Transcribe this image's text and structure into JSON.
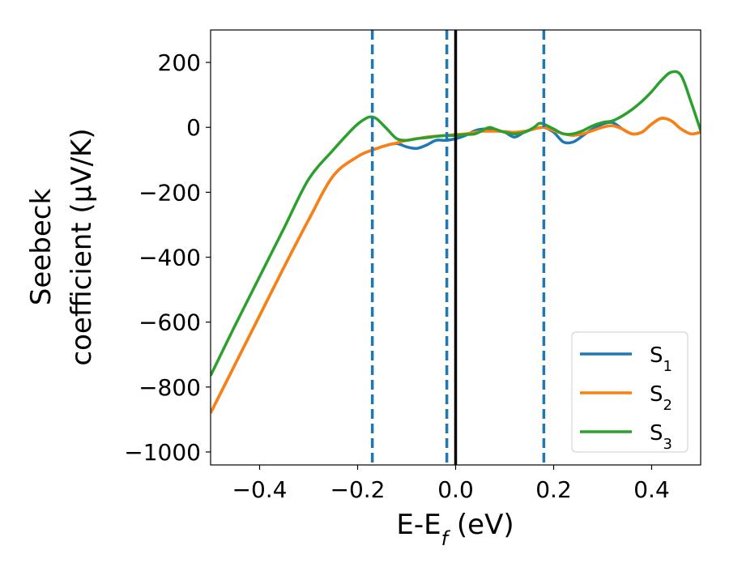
{
  "chart_data": {
    "type": "line",
    "xlabel": "E-E",
    "xlabel_sub": "f",
    "xlabel_unit": " (eV)",
    "ylabel_line1": "Seebeck",
    "ylabel_line2": "coefficient  (μV/K)",
    "xlim": [
      -0.5,
      0.5
    ],
    "ylim": [
      -1040,
      300
    ],
    "x_ticks": [
      -0.4,
      -0.2,
      0.0,
      0.2,
      0.4
    ],
    "x_tick_labels": [
      "−0.4",
      "−0.2",
      "0.0",
      "0.2",
      "0.4"
    ],
    "y_ticks": [
      200,
      0,
      -200,
      -400,
      -600,
      -800,
      -1000
    ],
    "y_tick_labels": [
      "200",
      "0",
      "−200",
      "−400",
      "−600",
      "−800",
      "−1000"
    ],
    "legend_position": "lower-right",
    "vlines_dashed": [
      -0.17,
      -0.018,
      0.18
    ],
    "vline_solid": 0.0,
    "series": [
      {
        "name": "S",
        "sub": "1",
        "color": "#1f77b4",
        "x": [
          -0.5,
          -0.45,
          -0.4,
          -0.35,
          -0.3,
          -0.25,
          -0.2,
          -0.17,
          -0.14,
          -0.12,
          -0.1,
          -0.08,
          -0.06,
          -0.04,
          -0.02,
          0.0,
          0.02,
          0.04,
          0.06,
          0.08,
          0.1,
          0.12,
          0.14,
          0.16,
          0.18,
          0.2,
          0.22,
          0.24,
          0.26,
          0.28,
          0.3,
          0.32,
          0.34,
          0.36,
          0.38,
          0.4,
          0.42,
          0.44,
          0.46,
          0.48,
          0.5
        ],
        "y": [
          -880,
          -730,
          -580,
          -430,
          -285,
          -150,
          -90,
          -70,
          -55,
          -50,
          -60,
          -65,
          -55,
          -40,
          -40,
          -35,
          -25,
          -10,
          -5,
          -10,
          -15,
          -30,
          -15,
          -5,
          0,
          -15,
          -45,
          -45,
          -25,
          -5,
          10,
          15,
          -5,
          -20,
          -15,
          10,
          28,
          20,
          -5,
          -20,
          -15
        ]
      },
      {
        "name": "S",
        "sub": "2",
        "color": "#ff7f0e",
        "x": [
          -0.5,
          -0.45,
          -0.4,
          -0.35,
          -0.3,
          -0.25,
          -0.2,
          -0.17,
          -0.14,
          -0.12,
          -0.1,
          -0.08,
          -0.06,
          -0.04,
          -0.02,
          0.0,
          0.02,
          0.04,
          0.06,
          0.08,
          0.1,
          0.12,
          0.14,
          0.16,
          0.18,
          0.2,
          0.22,
          0.24,
          0.26,
          0.28,
          0.3,
          0.32,
          0.34,
          0.36,
          0.38,
          0.4,
          0.42,
          0.44,
          0.46,
          0.48,
          0.5
        ],
        "y": [
          -880,
          -730,
          -580,
          -430,
          -285,
          -150,
          -90,
          -70,
          -55,
          -48,
          -40,
          -35,
          -30,
          -27,
          -25,
          -22,
          -20,
          -15,
          -12,
          -12,
          -13,
          -15,
          -12,
          -5,
          0,
          -10,
          -20,
          -25,
          -20,
          -10,
          0,
          5,
          -5,
          -20,
          -15,
          10,
          28,
          20,
          -5,
          -20,
          -15
        ]
      },
      {
        "name": "S",
        "sub": "3",
        "color": "#2ca02c",
        "x": [
          -0.5,
          -0.45,
          -0.4,
          -0.35,
          -0.3,
          -0.25,
          -0.22,
          -0.2,
          -0.18,
          -0.17,
          -0.16,
          -0.14,
          -0.12,
          -0.1,
          -0.08,
          -0.06,
          -0.04,
          -0.02,
          0.0,
          0.02,
          0.04,
          0.06,
          0.07,
          0.08,
          0.1,
          0.12,
          0.14,
          0.16,
          0.17,
          0.18,
          0.2,
          0.22,
          0.24,
          0.26,
          0.28,
          0.3,
          0.32,
          0.34,
          0.36,
          0.38,
          0.4,
          0.42,
          0.44,
          0.46,
          0.48,
          0.5
        ],
        "y": [
          -765,
          -610,
          -460,
          -310,
          -160,
          -70,
          -20,
          10,
          30,
          32,
          25,
          -5,
          -35,
          -40,
          -35,
          -32,
          -28,
          -25,
          -25,
          -22,
          -20,
          -5,
          0,
          -5,
          -15,
          -20,
          -15,
          0,
          12,
          10,
          -5,
          -20,
          -20,
          -10,
          5,
          15,
          20,
          35,
          55,
          80,
          110,
          145,
          170,
          160,
          80,
          -10
        ]
      }
    ]
  }
}
